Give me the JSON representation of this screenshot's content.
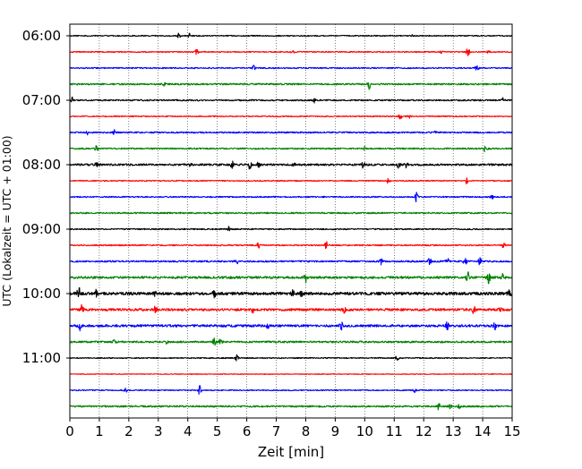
{
  "chart_data": {
    "type": "line",
    "chart_kind": "helicorder",
    "title": "",
    "xlabel": "Zeit  [min]",
    "ylabel": "UTC (Lokalzeit = UTC + 01:00)",
    "xlim": [
      0,
      15
    ],
    "x_ticks": [
      "0",
      "1",
      "2",
      "3",
      "4",
      "5",
      "6",
      "7",
      "8",
      "9",
      "10",
      "11",
      "12",
      "13",
      "14",
      "15"
    ],
    "y_tick_labels": [
      "06:00",
      "07:00",
      "08:00",
      "09:00",
      "10:00",
      "11:00"
    ],
    "grid": "vertical dotted at each minute",
    "legend": "none",
    "color_cycle": [
      "#000000",
      "#ff0000",
      "#0000ff",
      "#008000"
    ],
    "minutes_per_line": 15,
    "lines": [
      {
        "start": "06:00",
        "color": "#000000",
        "noise": 0.6,
        "events": [
          [
            3.7,
            3.5
          ],
          [
            4.05,
            2.5
          ],
          [
            11.6,
            1.5
          ]
        ]
      },
      {
        "start": "06:15",
        "color": "#ff0000",
        "noise": 0.6,
        "events": [
          [
            4.3,
            3.5
          ],
          [
            7.55,
            5
          ],
          [
            12.6,
            1.5
          ],
          [
            13.5,
            6
          ],
          [
            14.2,
            2
          ]
        ]
      },
      {
        "start": "06:30",
        "color": "#0000ff",
        "noise": 0.7,
        "events": [
          [
            6.25,
            3
          ],
          [
            13.8,
            5
          ]
        ]
      },
      {
        "start": "06:45",
        "color": "#008000",
        "noise": 0.9,
        "events": [
          [
            10.15,
            6
          ],
          [
            3.2,
            1.5
          ]
        ]
      },
      {
        "start": "07:00",
        "color": "#000000",
        "noise": 0.8,
        "events": [
          [
            0.1,
            4
          ],
          [
            8.3,
            2.5
          ],
          [
            14.7,
            2.5
          ]
        ]
      },
      {
        "start": "07:15",
        "color": "#ff0000",
        "noise": 0.6,
        "events": [
          [
            11.2,
            3.5
          ],
          [
            11.5,
            2
          ]
        ]
      },
      {
        "start": "07:30",
        "color": "#0000ff",
        "noise": 0.8,
        "events": [
          [
            1.5,
            3
          ],
          [
            0.6,
            2
          ],
          [
            12.4,
            1.5
          ]
        ]
      },
      {
        "start": "07:45",
        "color": "#008000",
        "noise": 0.8,
        "events": [
          [
            0.9,
            3
          ],
          [
            10.0,
            2
          ],
          [
            14.1,
            6
          ]
        ]
      },
      {
        "start": "08:00",
        "color": "#000000",
        "noise": 1.1,
        "events": [
          [
            5.5,
            4
          ],
          [
            6.1,
            4.5
          ],
          [
            6.4,
            3
          ],
          [
            9.95,
            3.5
          ],
          [
            11.15,
            3
          ],
          [
            11.4,
            3
          ],
          [
            0.9,
            2
          ],
          [
            4.1,
            2
          ],
          [
            7.6,
            2
          ]
        ]
      },
      {
        "start": "08:15",
        "color": "#ff0000",
        "noise": 0.6,
        "events": [
          [
            10.8,
            3
          ],
          [
            13.45,
            3.5
          ]
        ]
      },
      {
        "start": "08:30",
        "color": "#0000ff",
        "noise": 0.7,
        "events": [
          [
            11.75,
            5
          ],
          [
            14.3,
            3
          ]
        ]
      },
      {
        "start": "08:45",
        "color": "#008000",
        "noise": 0.8,
        "events": []
      },
      {
        "start": "09:00",
        "color": "#000000",
        "noise": 0.7,
        "events": [
          [
            5.4,
            3
          ]
        ]
      },
      {
        "start": "09:15",
        "color": "#ff0000",
        "noise": 0.7,
        "events": [
          [
            6.4,
            5
          ],
          [
            8.7,
            4
          ],
          [
            14.7,
            3
          ]
        ]
      },
      {
        "start": "09:30",
        "color": "#0000ff",
        "noise": 0.9,
        "events": [
          [
            5.65,
            4
          ],
          [
            10.55,
            4
          ],
          [
            12.2,
            5
          ],
          [
            12.8,
            6
          ],
          [
            13.4,
            5.5
          ],
          [
            13.9,
            4
          ]
        ]
      },
      {
        "start": "09:45",
        "color": "#008000",
        "noise": 1.3,
        "events": [
          [
            8.0,
            5
          ],
          [
            13.5,
            7
          ],
          [
            14.2,
            6.5
          ],
          [
            14.7,
            5
          ]
        ]
      },
      {
        "start": "10:00",
        "color": "#000000",
        "noise": 1.6,
        "events": [
          [
            0.3,
            7
          ],
          [
            0.9,
            4
          ],
          [
            2.9,
            3.5
          ],
          [
            4.9,
            3.5
          ],
          [
            7.55,
            4
          ],
          [
            7.85,
            3
          ],
          [
            14.9,
            4
          ]
        ]
      },
      {
        "start": "10:15",
        "color": "#ff0000",
        "noise": 1.3,
        "events": [
          [
            0.4,
            4.5
          ],
          [
            2.9,
            3.5
          ],
          [
            6.2,
            3
          ],
          [
            9.3,
            3
          ],
          [
            13.7,
            4
          ],
          [
            14.6,
            4.5
          ]
        ]
      },
      {
        "start": "10:30",
        "color": "#0000ff",
        "noise": 1.3,
        "events": [
          [
            0.35,
            5
          ],
          [
            6.7,
            4
          ],
          [
            9.2,
            5
          ],
          [
            12.8,
            4
          ],
          [
            14.4,
            4.5
          ]
        ]
      },
      {
        "start": "10:45",
        "color": "#008000",
        "noise": 1.0,
        "events": [
          [
            4.9,
            4
          ],
          [
            5.1,
            3.5
          ],
          [
            1.5,
            2
          ],
          [
            3.3,
            2
          ]
        ]
      },
      {
        "start": "11:00",
        "color": "#000000",
        "noise": 0.6,
        "events": [
          [
            5.65,
            3.5
          ],
          [
            11.1,
            2.5
          ]
        ]
      },
      {
        "start": "11:15",
        "color": "#ff0000",
        "noise": 0.4,
        "events": []
      },
      {
        "start": "11:30",
        "color": "#0000ff",
        "noise": 0.6,
        "events": [
          [
            4.4,
            5
          ],
          [
            1.9,
            2
          ],
          [
            11.7,
            2
          ]
        ]
      },
      {
        "start": "11:45",
        "color": "#008000",
        "noise": 0.9,
        "events": [
          [
            12.5,
            3.5
          ],
          [
            12.9,
            2.5
          ],
          [
            13.2,
            2
          ]
        ]
      }
    ]
  }
}
